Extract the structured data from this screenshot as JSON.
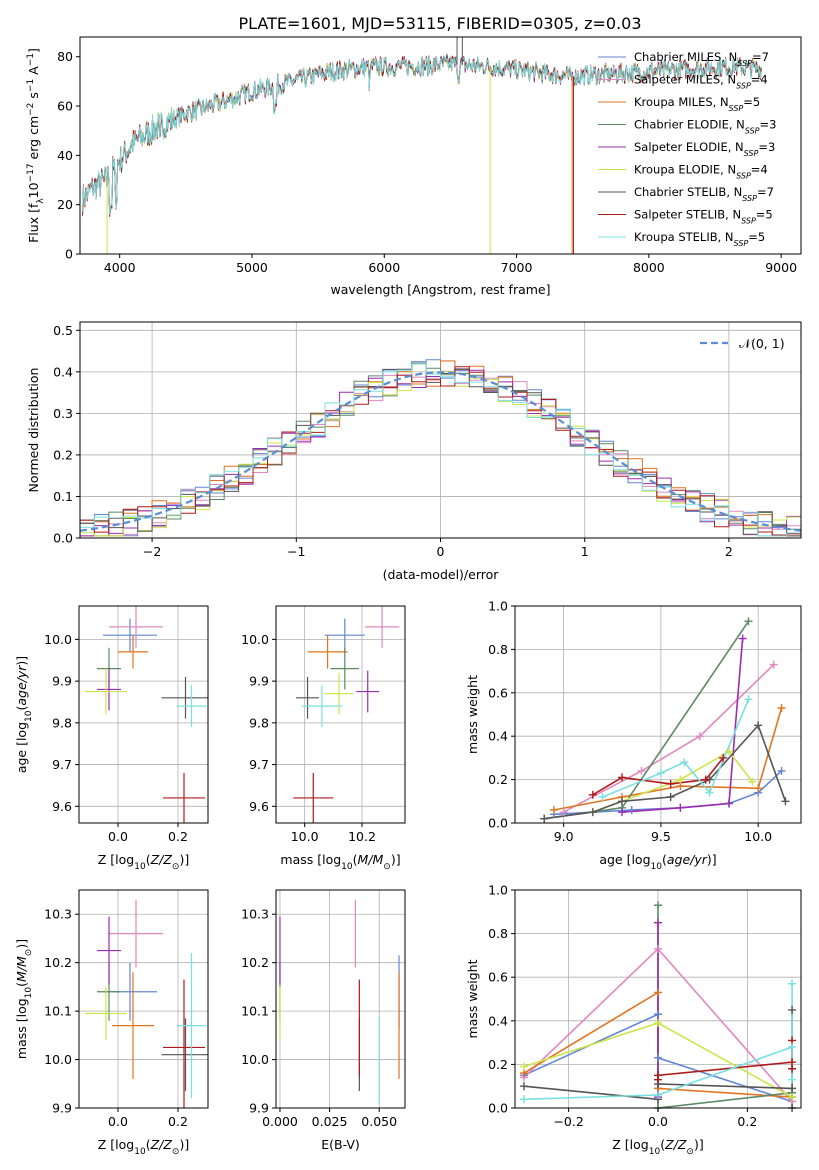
{
  "figure_title": "PLATE=1601, MJD=53115, FIBERID=0305, z=0.03",
  "colors": {
    "chabrier_miles": "#6185d6",
    "salpeter_miles": "#e088c0",
    "kroupa_miles": "#e2741f",
    "chabrier_elodie": "#5b8a63",
    "salpeter_elodie": "#9d2cb0",
    "kroupa_elodie": "#cde549",
    "chabrier_stelib": "#555555",
    "salpeter_stelib": "#b01a1a",
    "kroupa_stelib": "#7adfe0"
  },
  "chart_data": [
    {
      "id": "spectrum",
      "type": "line",
      "xlabel": "wavelength [Angstrom, rest frame]",
      "ylabel": "Flux [f_λ10^-17 erg cm^-2 s^-1 A^-1]",
      "xlim": [
        3700,
        9150
      ],
      "ylim": [
        0,
        88
      ],
      "xticks": [
        4000,
        5000,
        6000,
        7000,
        8000,
        9000
      ],
      "yticks": [
        0,
        20,
        40,
        60,
        80
      ],
      "legend_position": "upper-right",
      "grid": false,
      "legend": [
        {
          "key": "chabrier_miles",
          "label": "Chabrier MILES, N",
          "sub": "SSP",
          "tail": "=7"
        },
        {
          "key": "salpeter_miles",
          "label": "Salpeter MILES, N",
          "sub": "SSP",
          "tail": "=4"
        },
        {
          "key": "kroupa_miles",
          "label": "Kroupa MILES, N",
          "sub": "SSP",
          "tail": "=5"
        },
        {
          "key": "chabrier_elodie",
          "label": "Chabrier ELODIE, N",
          "sub": "SSP",
          "tail": "=3"
        },
        {
          "key": "salpeter_elodie",
          "label": "Salpeter ELODIE, N",
          "sub": "SSP",
          "tail": "=3"
        },
        {
          "key": "kroupa_elodie",
          "label": "Kroupa ELODIE, N",
          "sub": "SSP",
          "tail": "=4"
        },
        {
          "key": "chabrier_stelib",
          "label": "Chabrier STELIB, N",
          "sub": "SSP",
          "tail": "=7"
        },
        {
          "key": "salpeter_stelib",
          "label": "Salpeter STELIB, N",
          "sub": "SSP",
          "tail": "=5"
        },
        {
          "key": "kroupa_stelib",
          "label": "Kroupa STELIB, N",
          "sub": "SSP",
          "tail": "=5"
        }
      ],
      "continuum": [
        [
          3720,
          22
        ],
        [
          3800,
          27
        ],
        [
          3900,
          30
        ],
        [
          4000,
          38
        ],
        [
          4100,
          45
        ],
        [
          4300,
          52
        ],
        [
          4500,
          57
        ],
        [
          4800,
          62
        ],
        [
          5000,
          66
        ],
        [
          5300,
          70
        ],
        [
          5600,
          74
        ],
        [
          5900,
          76
        ],
        [
          6200,
          76
        ],
        [
          6500,
          77
        ],
        [
          6800,
          76
        ],
        [
          7100,
          74
        ],
        [
          7400,
          72
        ],
        [
          7700,
          73
        ],
        [
          8000,
          74
        ],
        [
          8300,
          75
        ],
        [
          8600,
          76
        ],
        [
          8850,
          75
        ]
      ],
      "spikes": [
        {
          "key": "kroupa_elodie",
          "x": 3905,
          "y": 0
        },
        {
          "key": "kroupa_elodie",
          "x": 6800,
          "y": 0
        },
        {
          "key": "kroupa_miles",
          "x": 7420,
          "y": 0
        },
        {
          "key": "salpeter_stelib",
          "x": 7430,
          "y": 0
        },
        {
          "key": "chabrier_stelib",
          "x": 6550,
          "y": 88
        },
        {
          "key": "chabrier_stelib",
          "x": 6590,
          "y": 88
        }
      ]
    },
    {
      "id": "residuals",
      "type": "histogram",
      "xlabel": "(data-model)/error",
      "ylabel": "Normed distribution",
      "xlim": [
        -2.5,
        2.5
      ],
      "ylim": [
        0,
        0.52
      ],
      "xticks": [
        -2,
        -1,
        0,
        1,
        2
      ],
      "yticks": [
        0.0,
        0.1,
        0.2,
        0.3,
        0.4,
        0.5
      ],
      "grid": true,
      "legend_position": "upper-right",
      "reference_label": "𝒩(0, 1)",
      "bin_width": 0.1
    },
    {
      "id": "age_vs_Z",
      "type": "errorbar",
      "xlabel": "Z [log10(Z/Z_sun)]",
      "ylabel": "age [log10(age/yr)]",
      "xlim": [
        -0.13,
        0.3
      ],
      "ylim": [
        9.56,
        10.08
      ],
      "xticks": [
        0.0,
        0.2
      ],
      "yticks": [
        9.6,
        9.7,
        9.8,
        9.9,
        10.0
      ],
      "grid": true,
      "points": [
        {
          "key": "chabrier_miles",
          "x": 0.04,
          "xerr": 0.09,
          "y": 10.01,
          "yerr": 0.04
        },
        {
          "key": "salpeter_miles",
          "x": 0.06,
          "xerr": 0.09,
          "y": 10.03,
          "yerr": 0.05
        },
        {
          "key": "kroupa_miles",
          "x": 0.05,
          "xerr": 0.05,
          "y": 9.97,
          "yerr": 0.04
        },
        {
          "key": "chabrier_elodie",
          "x": -0.03,
          "xerr": 0.04,
          "y": 9.93,
          "yerr": 0.05
        },
        {
          "key": "salpeter_elodie",
          "x": -0.03,
          "xerr": 0.04,
          "y": 9.88,
          "yerr": 0.05
        },
        {
          "key": "kroupa_elodie",
          "x": -0.04,
          "xerr": 0.07,
          "y": 9.875,
          "yerr": 0.055
        },
        {
          "key": "chabrier_stelib",
          "x": 0.225,
          "xerr": 0.08,
          "y": 9.86,
          "yerr": 0.05
        },
        {
          "key": "salpeter_stelib",
          "x": 0.22,
          "xerr": 0.07,
          "y": 9.62,
          "yerr": 0.06
        },
        {
          "key": "kroupa_stelib",
          "x": 0.245,
          "xerr": 0.05,
          "y": 9.84,
          "yerr": 0.05
        }
      ]
    },
    {
      "id": "age_vs_mass",
      "type": "errorbar",
      "xlabel": "mass [log10(M/M_sun)]",
      "ylabel": "",
      "xlim": [
        9.9,
        10.35
      ],
      "ylim": [
        9.56,
        10.08
      ],
      "xticks": [
        10.0,
        10.2
      ],
      "yticks": [
        9.6,
        9.7,
        9.8,
        9.9,
        10.0
      ],
      "grid": true,
      "points": [
        {
          "key": "chabrier_miles",
          "x": 10.14,
          "xerr": 0.07,
          "y": 10.01,
          "yerr": 0.04
        },
        {
          "key": "salpeter_miles",
          "x": 10.27,
          "xerr": 0.06,
          "y": 10.03,
          "yerr": 0.05
        },
        {
          "key": "kroupa_miles",
          "x": 10.08,
          "xerr": 0.07,
          "y": 9.97,
          "yerr": 0.04
        },
        {
          "key": "chabrier_elodie",
          "x": 10.14,
          "xerr": 0.05,
          "y": 9.93,
          "yerr": 0.05
        },
        {
          "key": "salpeter_elodie",
          "x": 10.22,
          "xerr": 0.04,
          "y": 9.875,
          "yerr": 0.05
        },
        {
          "key": "kroupa_elodie",
          "x": 10.12,
          "xerr": 0.05,
          "y": 9.87,
          "yerr": 0.05
        },
        {
          "key": "chabrier_stelib",
          "x": 10.01,
          "xerr": 0.04,
          "y": 9.86,
          "yerr": 0.05
        },
        {
          "key": "salpeter_stelib",
          "x": 10.03,
          "xerr": 0.07,
          "y": 9.62,
          "yerr": 0.06
        },
        {
          "key": "kroupa_stelib",
          "x": 10.06,
          "xerr": 0.07,
          "y": 9.84,
          "yerr": 0.05
        }
      ]
    },
    {
      "id": "massweight_vs_age",
      "type": "line",
      "xlabel": "age [log10(age/yr)]",
      "ylabel": "mass weight",
      "xlim": [
        8.75,
        10.22
      ],
      "ylim": [
        0,
        1.0
      ],
      "xticks": [
        9.0,
        9.5,
        10.0
      ],
      "yticks": [
        0.0,
        0.2,
        0.4,
        0.6,
        0.8,
        1.0
      ],
      "grid": true,
      "series": [
        {
          "key": "chabrier_miles",
          "x": [
            8.95,
            9.35,
            9.6,
            9.85,
            10.0,
            10.12
          ],
          "y": [
            0.04,
            0.06,
            0.07,
            0.09,
            0.14,
            0.24
          ]
        },
        {
          "key": "salpeter_miles",
          "x": [
            9.0,
            9.4,
            9.7,
            10.08
          ],
          "y": [
            0.05,
            0.24,
            0.4,
            0.73
          ]
        },
        {
          "key": "kroupa_miles",
          "x": [
            8.95,
            9.3,
            9.6,
            10.0,
            10.12
          ],
          "y": [
            0.06,
            0.12,
            0.17,
            0.16,
            0.53
          ]
        },
        {
          "key": "chabrier_elodie",
          "x": [
            8.9,
            9.3,
            9.95
          ],
          "y": [
            0.02,
            0.07,
            0.93
          ]
        },
        {
          "key": "salpeter_elodie",
          "x": [
            9.3,
            9.6,
            9.85,
            9.92
          ],
          "y": [
            0.05,
            0.07,
            0.09,
            0.85
          ]
        },
        {
          "key": "kroupa_elodie",
          "x": [
            9.15,
            9.6,
            9.85,
            9.97
          ],
          "y": [
            0.05,
            0.2,
            0.33,
            0.19
          ]
        },
        {
          "key": "chabrier_stelib",
          "x": [
            8.9,
            9.15,
            9.3,
            9.55,
            9.75,
            10.0,
            10.14
          ],
          "y": [
            0.02,
            0.05,
            0.1,
            0.12,
            0.2,
            0.45,
            0.1
          ]
        },
        {
          "key": "salpeter_stelib",
          "x": [
            9.15,
            9.3,
            9.55,
            9.73,
            9.82
          ],
          "y": [
            0.13,
            0.21,
            0.18,
            0.2,
            0.3
          ]
        },
        {
          "key": "kroupa_stelib",
          "x": [
            9.2,
            9.5,
            9.62,
            9.75,
            9.95
          ],
          "y": [
            0.12,
            0.23,
            0.28,
            0.14,
            0.57
          ]
        }
      ]
    },
    {
      "id": "mass_vs_Z",
      "type": "errorbar",
      "xlabel": "Z [log10(Z/Z_sun)]",
      "ylabel": "mass [log10(M/M_sun)]",
      "xlim": [
        -0.13,
        0.3
      ],
      "ylim": [
        9.9,
        10.35
      ],
      "xticks": [
        0.0,
        0.2
      ],
      "yticks": [
        9.9,
        10.0,
        10.1,
        10.2,
        10.3
      ],
      "grid": true,
      "points": [
        {
          "key": "chabrier_miles",
          "x": 0.04,
          "xerr": 0.09,
          "y": 10.14,
          "yerr": 0.06
        },
        {
          "key": "salpeter_miles",
          "x": 0.06,
          "xerr": 0.09,
          "y": 10.26,
          "yerr": 0.07
        },
        {
          "key": "kroupa_miles",
          "x": 0.05,
          "xerr": 0.07,
          "y": 10.07,
          "yerr": 0.11
        },
        {
          "key": "chabrier_elodie",
          "x": -0.03,
          "xerr": 0.04,
          "y": 10.14,
          "yerr": 0.06
        },
        {
          "key": "salpeter_elodie",
          "x": -0.03,
          "xerr": 0.04,
          "y": 10.225,
          "yerr": 0.07
        },
        {
          "key": "kroupa_elodie",
          "x": -0.04,
          "xerr": 0.07,
          "y": 10.095,
          "yerr": 0.055
        },
        {
          "key": "chabrier_stelib",
          "x": 0.225,
          "xerr": 0.08,
          "y": 10.01,
          "yerr": 0.075
        },
        {
          "key": "salpeter_stelib",
          "x": 0.22,
          "xerr": 0.07,
          "y": 10.025,
          "yerr": 0.14
        },
        {
          "key": "kroupa_stelib",
          "x": 0.245,
          "xerr": 0.05,
          "y": 10.07,
          "yerr": 0.15
        }
      ]
    },
    {
      "id": "mass_vs_EBV",
      "type": "errorbar",
      "xlabel": "E(B-V)",
      "ylabel": "",
      "xlim": [
        -0.002,
        0.063
      ],
      "ylim": [
        9.9,
        10.35
      ],
      "xticks": [
        0.0,
        0.025,
        0.05
      ],
      "yticks": [
        9.9,
        10.0,
        10.1,
        10.2,
        10.3
      ],
      "grid": true,
      "points": [
        {
          "key": "chabrier_miles",
          "x": 0.06,
          "xerr": 0,
          "y": 10.14,
          "yerr": 0.075
        },
        {
          "key": "salpeter_miles",
          "x": 0.038,
          "xerr": 0,
          "y": 10.26,
          "yerr": 0.07
        },
        {
          "key": "kroupa_miles",
          "x": 0.06,
          "xerr": 0,
          "y": 10.07,
          "yerr": 0.11
        },
        {
          "key": "chabrier_elodie",
          "x": 0.0,
          "xerr": 0,
          "y": 10.14,
          "yerr": 0.06
        },
        {
          "key": "salpeter_elodie",
          "x": 0.0,
          "xerr": 0,
          "y": 10.225,
          "yerr": 0.07
        },
        {
          "key": "kroupa_elodie",
          "x": 0.0,
          "xerr": 0,
          "y": 10.095,
          "yerr": 0.055
        },
        {
          "key": "chabrier_stelib",
          "x": 0.04,
          "xerr": 0,
          "y": 10.01,
          "yerr": 0.075
        },
        {
          "key": "salpeter_stelib",
          "x": 0.04,
          "xerr": 0,
          "y": 10.065,
          "yerr": 0.1
        },
        {
          "key": "kroupa_stelib",
          "x": 0.05,
          "xerr": 0,
          "y": 10.0,
          "yerr": 0.09
        }
      ]
    },
    {
      "id": "massweight_vs_Z",
      "type": "line",
      "xlabel": "Z [log10(Z/Z_sun)]",
      "ylabel": "mass weight",
      "xlim": [
        -0.32,
        0.32
      ],
      "ylim": [
        0,
        1.0
      ],
      "xticks": [
        -0.2,
        0.0,
        0.2
      ],
      "yticks": [
        0.0,
        0.2,
        0.4,
        0.6,
        0.8,
        1.0
      ],
      "grid": true,
      "series": [
        {
          "key": "chabrier_miles",
          "x": [
            -0.3,
            0.0,
            0.0,
            0.3,
            0.3
          ],
          "y": [
            0.15,
            0.43,
            0.23,
            0.03,
            0.05
          ]
        },
        {
          "key": "salpeter_miles",
          "x": [
            -0.3,
            0.0,
            0.3
          ],
          "y": [
            0.14,
            0.73,
            0.03
          ]
        },
        {
          "key": "kroupa_miles",
          "x": [
            -0.3,
            0.0,
            0.0,
            0.3
          ],
          "y": [
            0.16,
            0.53,
            0.09,
            0.05
          ]
        },
        {
          "key": "chabrier_elodie",
          "x": [
            0.0,
            0.0,
            0.3
          ],
          "y": [
            0.93,
            0.0,
            0.07
          ]
        },
        {
          "key": "salpeter_elodie",
          "x": [
            0.0,
            0.0
          ],
          "y": [
            0.85,
            0.05
          ]
        },
        {
          "key": "kroupa_elodie",
          "x": [
            -0.3,
            0.0,
            0.3
          ],
          "y": [
            0.19,
            0.39,
            0.05
          ]
        },
        {
          "key": "chabrier_stelib",
          "x": [
            -0.3,
            0.0,
            0.0,
            0.3,
            0.3,
            0.3
          ],
          "y": [
            0.1,
            0.04,
            0.11,
            0.09,
            0.45,
            0.0
          ]
        },
        {
          "key": "salpeter_stelib",
          "x": [
            0.0,
            0.0,
            0.3,
            0.3,
            0.3
          ],
          "y": [
            0.13,
            0.15,
            0.21,
            0.31,
            0.18
          ]
        },
        {
          "key": "kroupa_stelib",
          "x": [
            -0.3,
            0.0,
            0.3,
            0.3,
            0.3
          ],
          "y": [
            0.04,
            0.06,
            0.28,
            0.57,
            0.13
          ]
        }
      ]
    }
  ]
}
